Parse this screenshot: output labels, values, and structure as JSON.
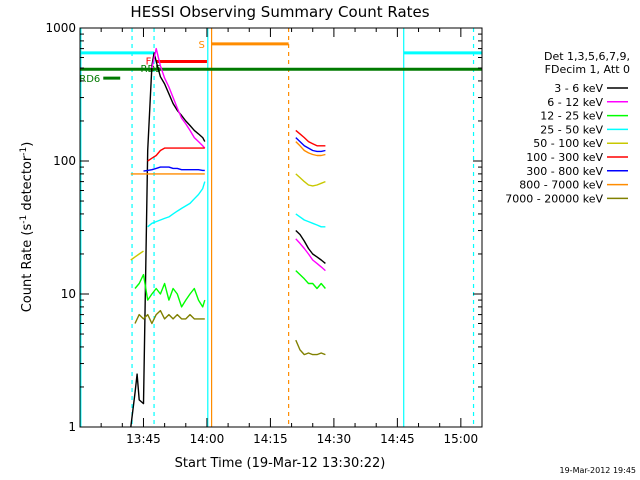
{
  "chart_data": {
    "type": "line",
    "title": "HESSI Observing Summary Count Rates",
    "xlabel": "Start Time (19-Mar-12 13:30:22)",
    "ylabel_main": "Count Rate (s",
    "ylabel_sup1": "-1",
    "ylabel_mid": " detector",
    "ylabel_sup2": "-1",
    "ylabel_end": ")",
    "yscale": "log",
    "ylim": [
      1,
      1000
    ],
    "xlim_minutes": [
      0,
      95
    ],
    "x_tick_minutes": [
      15,
      30,
      45,
      60,
      75,
      90
    ],
    "x_tick_labels": [
      "13:45",
      "14:00",
      "14:15",
      "14:30",
      "14:45",
      "15:00"
    ],
    "y_ticks": [
      1,
      10,
      100,
      1000
    ],
    "y_tick_labels": [
      "1",
      "10",
      "100",
      "1000"
    ],
    "grid": false,
    "legend_placement": "right",
    "legend_header": [
      "Det 1,3,5,6,7,9,",
      "FDecim 1, Att 0"
    ],
    "timestamp": "19-Mar-2012 19:45",
    "flag_labels": {
      "saa": "S",
      "flare": "F",
      "rd6": "RD6",
      "rd5": "RD5"
    },
    "series": [
      {
        "name": "3 - 6 keV",
        "color": "#000000",
        "x": [
          12,
          13,
          13.5,
          14,
          15,
          16,
          17,
          17.5,
          18,
          19,
          20,
          21,
          22,
          23,
          24,
          25,
          26,
          27,
          28,
          29,
          29.5,
          51,
          52,
          53,
          54,
          55,
          56,
          57,
          58
        ],
        "y": [
          1,
          1.8,
          2.5,
          1.6,
          1.5,
          120,
          520,
          650,
          560,
          430,
          380,
          320,
          270,
          240,
          220,
          200,
          185,
          170,
          160,
          150,
          140,
          30,
          28,
          25,
          22,
          20,
          19,
          18,
          17
        ]
      },
      {
        "name": "6 - 12 keV",
        "color": "#ff00ff",
        "x": [
          17,
          18,
          19,
          20,
          21,
          22,
          23,
          24,
          25,
          26,
          27,
          28,
          29,
          29.5,
          51,
          52,
          53,
          54,
          55,
          56,
          57,
          58
        ],
        "y": [
          500,
          700,
          520,
          420,
          360,
          300,
          250,
          210,
          190,
          170,
          150,
          140,
          130,
          125,
          26,
          24,
          22,
          20,
          18,
          17,
          16,
          15
        ]
      },
      {
        "name": "12 - 25 keV",
        "color": "#00ff00",
        "x": [
          13,
          14,
          15,
          16,
          17,
          18,
          19,
          20,
          21,
          22,
          23,
          24,
          25,
          26,
          27,
          28,
          29,
          29.5,
          51,
          52,
          53,
          54,
          55,
          56,
          57,
          58
        ],
        "y": [
          11,
          12,
          14,
          9,
          10,
          11,
          10,
          12,
          9,
          11,
          10,
          8,
          9,
          10,
          11,
          9,
          8,
          9,
          15,
          14,
          13,
          12,
          12,
          11,
          12,
          11
        ]
      },
      {
        "name": "25 - 50 keV",
        "color": "#00ffff",
        "x": [
          16,
          17,
          18,
          19,
          20,
          21,
          22,
          23,
          24,
          25,
          26,
          27,
          28,
          29,
          29.5,
          51,
          52,
          53,
          54,
          55,
          56,
          57,
          58
        ],
        "y": [
          32,
          34,
          35,
          36,
          37,
          38,
          40,
          42,
          44,
          46,
          48,
          52,
          56,
          62,
          70,
          40,
          38,
          36,
          35,
          34,
          33,
          32,
          32
        ]
      },
      {
        "name": "50 - 100 keV",
        "color": "#c8c800",
        "x": [
          12,
          13,
          14,
          15,
          51,
          52,
          53,
          54,
          55,
          56,
          57,
          58
        ],
        "y": [
          18,
          19,
          20,
          21,
          80,
          75,
          70,
          66,
          65,
          66,
          68,
          70
        ]
      },
      {
        "name": "100 - 300 keV",
        "color": "#ff0000",
        "x": [
          16,
          17,
          18,
          19,
          20,
          21,
          22,
          23,
          24,
          25,
          26,
          27,
          28,
          29,
          29.5,
          51,
          52,
          53,
          54,
          55,
          56,
          57,
          58
        ],
        "y": [
          100,
          105,
          110,
          120,
          125,
          125,
          125,
          125,
          125,
          125,
          125,
          125,
          125,
          125,
          125,
          170,
          160,
          150,
          140,
          135,
          130,
          130,
          130
        ]
      },
      {
        "name": "300 - 800 keV",
        "color": "#0000ff",
        "x": [
          15,
          16,
          17,
          18,
          19,
          20,
          21,
          22,
          23,
          24,
          25,
          26,
          27,
          28,
          29,
          29.5,
          51,
          52,
          53,
          54,
          55,
          56,
          57,
          58
        ],
        "y": [
          84,
          85,
          86,
          88,
          90,
          90,
          90,
          88,
          88,
          86,
          86,
          86,
          86,
          86,
          85,
          85,
          150,
          140,
          130,
          125,
          120,
          118,
          118,
          120
        ]
      },
      {
        "name": "800 - 7000 keV",
        "color": "#ff8c00",
        "x": [
          12,
          13,
          14,
          15,
          16,
          17,
          18,
          19,
          20,
          21,
          22,
          23,
          24,
          25,
          26,
          27,
          28,
          29,
          29.5,
          51,
          52,
          53,
          54,
          55,
          56,
          57,
          58
        ],
        "y": [
          80,
          80,
          80,
          80,
          80,
          80,
          80,
          80,
          80,
          80,
          80,
          80,
          80,
          80,
          80,
          80,
          80,
          80,
          80,
          140,
          130,
          120,
          115,
          112,
          110,
          110,
          112
        ]
      },
      {
        "name": "7000 - 20000 keV",
        "color": "#808000",
        "x": [
          13,
          14,
          15,
          16,
          17,
          18,
          19,
          20,
          21,
          22,
          23,
          24,
          25,
          26,
          27,
          28,
          29,
          29.5,
          51,
          52,
          53,
          54,
          55,
          56,
          57,
          58
        ],
        "y": [
          6,
          7,
          6.5,
          7,
          6,
          7,
          7.5,
          6.5,
          7,
          6.5,
          7,
          6.5,
          6.5,
          7,
          6.5,
          6.5,
          6.5,
          6.5,
          4.5,
          3.8,
          3.5,
          3.6,
          3.5,
          3.5,
          3.6,
          3.5
        ]
      }
    ]
  }
}
